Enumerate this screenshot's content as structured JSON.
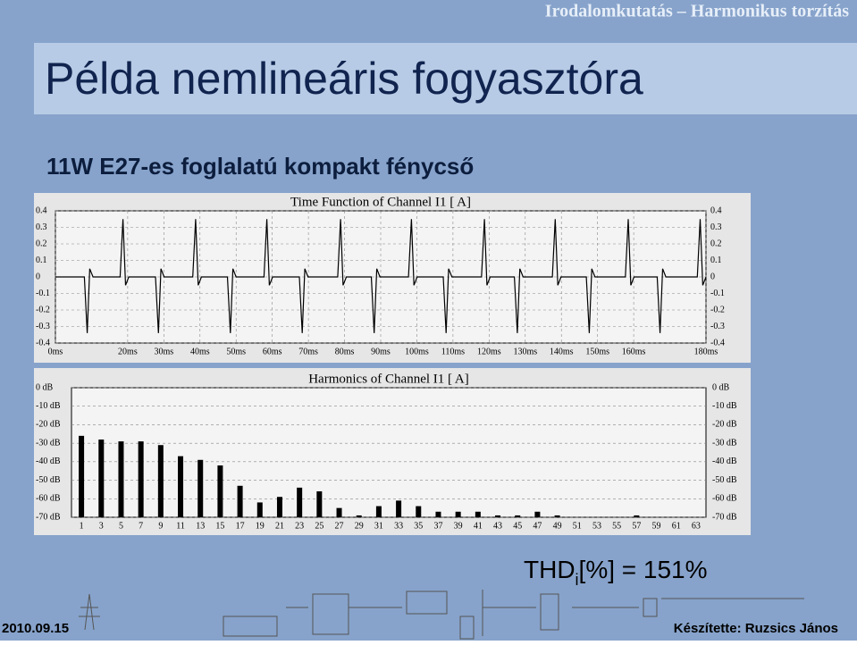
{
  "header": "Irodalomkutatás – Harmonikus torzítás",
  "title": "Példa nemlineáris fogyasztóra",
  "subtitle": "11W E27-es foglalatú kompakt fénycső",
  "thd": {
    "label": "THD",
    "subscript": "i",
    "text": "[%] = 151%"
  },
  "footer": {
    "date": "2010.09.15",
    "author": "Készítette: Ruzsics János"
  },
  "chart_data": [
    {
      "type": "line",
      "title": "Time Function of Channel I1 [ A]",
      "color": "#000000",
      "grid": true,
      "x": [
        0,
        8.0,
        8.8,
        9.5,
        10.4,
        17.9,
        18.7,
        19.4,
        20.3,
        27.7,
        28.5,
        29.2,
        30.1,
        38.0,
        38.8,
        39.5,
        40.4,
        47.6,
        48.4,
        49.1,
        50.0,
        57.7,
        58.5,
        59.2,
        60.1,
        67.5,
        68.3,
        69.0,
        69.9,
        78.1,
        78.9,
        79.6,
        80.5,
        87.4,
        88.2,
        88.9,
        89.8,
        97.7,
        98.5,
        99.2,
        100.1,
        107.3,
        108.1,
        108.8,
        109.7,
        117.9,
        118.7,
        119.4,
        120.3,
        127.0,
        127.8,
        128.5,
        129.4,
        137.5,
        138.3,
        139.0,
        139.9,
        146.9,
        147.7,
        148.4,
        149.3,
        157.7,
        158.5,
        159.2,
        160.1,
        166.5,
        167.3,
        168.0,
        168.9,
        177.6,
        178.4,
        179.1,
        180.0
      ],
      "values": [
        0,
        0,
        -0.34,
        0.05,
        0,
        0,
        0.35,
        -0.05,
        0,
        0,
        -0.34,
        0.05,
        0,
        0,
        0.35,
        -0.05,
        0,
        0,
        -0.34,
        0.05,
        0,
        0,
        0.35,
        -0.05,
        0,
        0,
        -0.34,
        0.05,
        0,
        0,
        0.35,
        -0.05,
        0,
        0,
        -0.34,
        0.05,
        0,
        0,
        0.35,
        -0.05,
        0,
        0,
        -0.34,
        0.05,
        0,
        0,
        0.35,
        -0.05,
        0,
        0,
        -0.34,
        0.05,
        0,
        0,
        0.35,
        -0.05,
        0,
        0,
        -0.34,
        0.05,
        0,
        0,
        0.35,
        -0.05,
        0,
        0,
        -0.34,
        0.05,
        0,
        0,
        0.35,
        -0.05,
        0
      ],
      "xlim": [
        0,
        180
      ],
      "xticks": [
        {
          "value": 0,
          "label": "0ms"
        },
        {
          "value": 20,
          "label": "20ms"
        },
        {
          "value": 30,
          "label": "30ms"
        },
        {
          "value": 40,
          "label": "40ms"
        },
        {
          "value": 50,
          "label": "50ms"
        },
        {
          "value": 60,
          "label": "60ms"
        },
        {
          "value": 70,
          "label": "70ms"
        },
        {
          "value": 80,
          "label": "80ms"
        },
        {
          "value": 90,
          "label": "90ms"
        },
        {
          "value": 100,
          "label": "100ms"
        },
        {
          "value": 110,
          "label": "110ms"
        },
        {
          "value": 120,
          "label": "120ms"
        },
        {
          "value": 130,
          "label": "130ms"
        },
        {
          "value": 140,
          "label": "140ms"
        },
        {
          "value": 150,
          "label": "150ms"
        },
        {
          "value": 160,
          "label": "160ms"
        },
        {
          "value": 180,
          "label": "180ms"
        }
      ],
      "ylim": [
        -0.4,
        0.4
      ],
      "yticks": [
        0.4,
        0.3,
        0.2,
        0.1,
        0,
        -0.1,
        -0.2,
        -0.3,
        -0.4
      ]
    },
    {
      "type": "bar",
      "title": "Harmonics of Channel I1 [ A]",
      "color": "#000000",
      "grid": true,
      "categories": [
        "1",
        "3",
        "5",
        "7",
        "9",
        "11",
        "13",
        "15",
        "17",
        "19",
        "21",
        "23",
        "25",
        "27",
        "29",
        "31",
        "33",
        "35",
        "37",
        "39",
        "41",
        "43",
        "45",
        "47",
        "49",
        "51",
        "53",
        "55",
        "57",
        "59",
        "61",
        "63"
      ],
      "values": [
        -26,
        -28,
        -29,
        -29,
        -31,
        -37,
        -39,
        -42,
        -53,
        -62,
        -59,
        -54,
        -56,
        -65,
        -69,
        -64,
        -61,
        -64,
        -67,
        -67,
        -67,
        -69,
        -69,
        -67,
        -69,
        -70,
        -70,
        -70,
        -69,
        -70,
        -70,
        -70
      ],
      "ylim": [
        -70,
        0
      ],
      "yticks": [
        {
          "value": 0,
          "label": "0 dB"
        },
        {
          "value": -10,
          "label": "-10 dB"
        },
        {
          "value": -20,
          "label": "-20 dB"
        },
        {
          "value": -30,
          "label": "-30 dB"
        },
        {
          "value": -40,
          "label": "-40 dB"
        },
        {
          "value": -50,
          "label": "-50 dB"
        },
        {
          "value": -60,
          "label": "-60 dB"
        },
        {
          "value": -70,
          "label": "-70 dB"
        }
      ]
    }
  ]
}
